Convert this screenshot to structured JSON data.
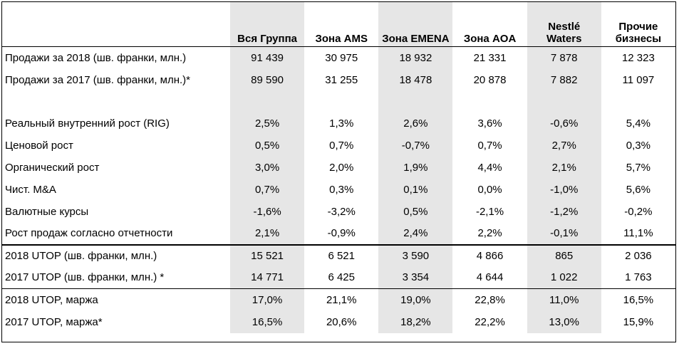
{
  "headers": [
    "",
    "Вся Группа",
    "Зона AMS",
    "Зона EMENA",
    "Зона AOA",
    "Nestlé\nWaters",
    "Прочие\nбизнесы"
  ],
  "header_lines": {
    "h5a": "Nestlé",
    "h5b": "Waters",
    "h6a": "Прочие",
    "h6b": "бизнесы"
  },
  "rows": {
    "sales2018": [
      "Продажи за 2018 (шв. франки, млн.)",
      "91 439",
      "30 975",
      "18 932",
      "21 331",
      "7 878",
      "12 323"
    ],
    "sales2017": [
      "Продажи за 2017 (шв. франки, млн.)*",
      "89 590",
      "31 255",
      "18 478",
      "20 878",
      "7 882",
      "11 097"
    ],
    "rig": [
      "Реальный внутренний рост (RIG)",
      "2,5%",
      "1,3%",
      "2,6%",
      "3,6%",
      "-0,6%",
      "5,4%"
    ],
    "price": [
      "Ценовой рост",
      "0,5%",
      "0,7%",
      "-0,7%",
      "0,7%",
      "2,7%",
      "0,3%"
    ],
    "organic": [
      "Органический рост",
      "3,0%",
      "2,0%",
      "1,9%",
      "4,4%",
      "2,1%",
      "5,7%"
    ],
    "ma": [
      "Чист. M&A",
      "0,7%",
      "0,3%",
      "0,1%",
      "0,0%",
      "-1,0%",
      "5,6%"
    ],
    "fx": [
      "Валютные курсы",
      "-1,6%",
      "-3,2%",
      "0,5%",
      "-2,1%",
      "-1,2%",
      "-0,2%"
    ],
    "reported": [
      "Рост продаж согласно отчетности",
      "2,1%",
      "-0,9%",
      "2,4%",
      "2,2%",
      "-0,1%",
      "11,1%"
    ],
    "utop2018": [
      "2018 UTOP (шв. франки, млн.)",
      "15 521",
      "6 521",
      "3 590",
      "4 866",
      "865",
      "2 036"
    ],
    "utop2017": [
      "2017 UTOP (шв. франки, млн.) *",
      "14 771",
      "6 425",
      "3 354",
      "4 644",
      "1 022",
      "1 763"
    ],
    "margin2018": [
      "2018 UTOP, маржа",
      "17,0%",
      "21,1%",
      "19,0%",
      "22,8%",
      "11,0%",
      "16,5%"
    ],
    "margin2017": [
      "2017 UTOP, маржа*",
      "16,5%",
      "20,6%",
      "18,2%",
      "22,2%",
      "13,0%",
      "15,9%"
    ]
  },
  "colors": {
    "shade": "#e6e6e6",
    "border": "#000000"
  }
}
